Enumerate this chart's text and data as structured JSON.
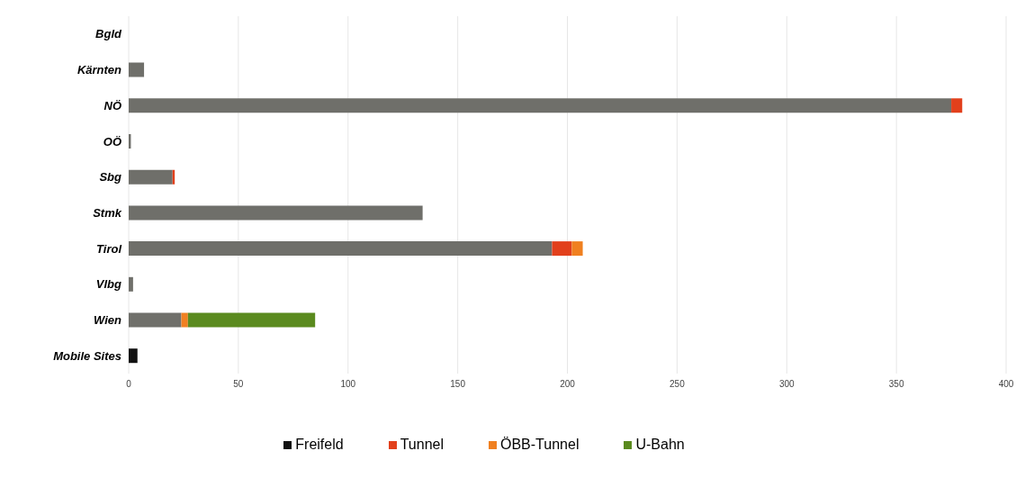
{
  "chart_data": {
    "type": "bar",
    "orientation": "horizontal",
    "stacked": true,
    "categories": [
      "Bgld",
      "Kärnten",
      "NÖ",
      "OÖ",
      "Sbg",
      "Stmk",
      "Tirol",
      "Vlbg",
      "Wien",
      "Mobile Sites"
    ],
    "series": [
      {
        "name": "Freifeld",
        "color": "#111111",
        "colors": [
          "#6f6f6a",
          "#6f6f6a",
          "#6f6f6a",
          "#6f6f6a",
          "#6f6f6a",
          "#6f6f6a",
          "#6f6f6a",
          "#6f6f6a",
          "#6f6f6a",
          "#111111"
        ],
        "values": [
          0,
          7,
          375,
          1,
          20,
          134,
          193,
          2,
          24,
          4
        ]
      },
      {
        "name": "Tunnel",
        "color": "#e2401c",
        "values": [
          0,
          0,
          5,
          0,
          1,
          0,
          9,
          0,
          0,
          0
        ]
      },
      {
        "name": "ÖBB-Tunnel",
        "color": "#f08020",
        "values": [
          0,
          0,
          0,
          0,
          0,
          0,
          5,
          0,
          3,
          0
        ]
      },
      {
        "name": "U-Bahn",
        "color": "#5a8a1e",
        "values": [
          0,
          0,
          0,
          0,
          0,
          0,
          0,
          0,
          58,
          0
        ]
      }
    ],
    "xlim": [
      0,
      400
    ],
    "xticks": [
      0,
      50,
      100,
      150,
      200,
      250,
      300,
      350,
      400
    ],
    "grid": "x",
    "legend": "bottom"
  }
}
